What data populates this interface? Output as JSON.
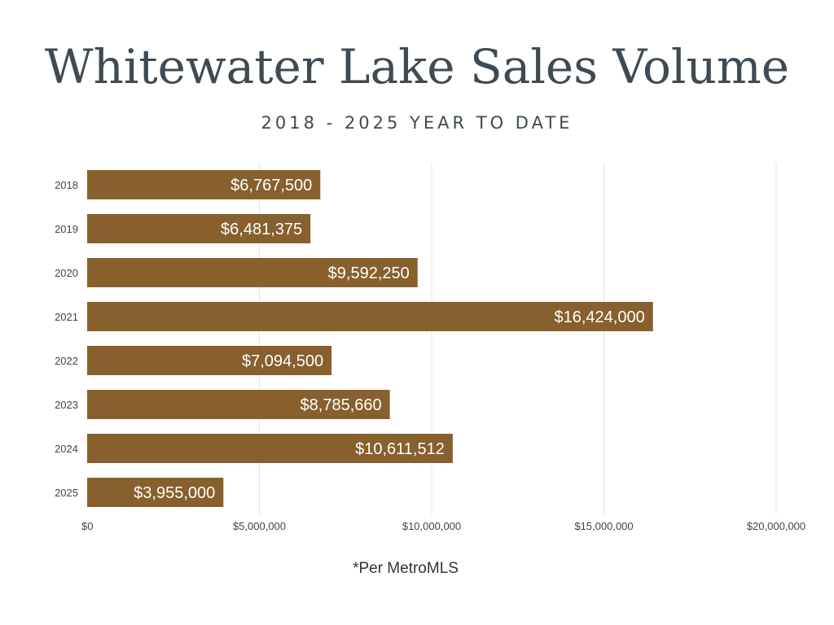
{
  "title": "Whitewater Lake Sales Volume",
  "subtitle": "2018 - 2025 YEAR TO DATE",
  "footnote": "*Per MetroMLS",
  "colors": {
    "bar": "#87602D",
    "grid": "#e3e3e3",
    "axis_text": "#444444",
    "label": "#ffffff"
  },
  "chart_data": {
    "type": "bar",
    "orientation": "horizontal",
    "categories": [
      "2018",
      "2019",
      "2020",
      "2021",
      "2022",
      "2023",
      "2024",
      "2025"
    ],
    "values": [
      6767500,
      6481375,
      9592250,
      16424000,
      7094500,
      8785660,
      10611512,
      3955000
    ],
    "value_labels": [
      "$6,767,500",
      "$6,481,375",
      "$9,592,250",
      "$16,424,000",
      "$7,094,500",
      "$8,785,660",
      "$10,611,512",
      "$3,955,000"
    ],
    "x_ticks": [
      0,
      5000000,
      10000000,
      15000000,
      20000000
    ],
    "x_tick_labels": [
      "$0",
      "$5,000,000",
      "$10,000,000",
      "$15,000,000",
      "$20,000,000"
    ],
    "xlim": [
      0,
      20000000
    ],
    "grid": true,
    "legend": "none"
  }
}
